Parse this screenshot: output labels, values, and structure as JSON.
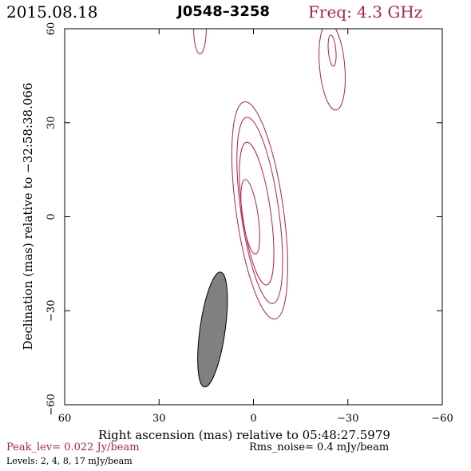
{
  "header": {
    "date": "2015.08.18",
    "source": "J0548–3258",
    "freq": "Freq: 4.3 GHz"
  },
  "footer": {
    "peak": "Peak_lev=  0.022 Jy/beam",
    "rms": "Rms_noise=   0.4 mJy/beam",
    "levels": "Levels:   2,    4,    8,   17 mJy/beam"
  },
  "colors": {
    "contour": "#b0204a",
    "beam_fill": "#808080",
    "axis": "#000000"
  },
  "chart_data": {
    "type": "contour",
    "xlabel": "Right ascension (mas) relative to 05:48:27.5979",
    "ylabel": "Declination (mas) relative to −32:58:38.066",
    "xlim": [
      60,
      -60
    ],
    "ylim": [
      -60,
      60
    ],
    "x_ticks": [
      60,
      30,
      0,
      -30,
      -60
    ],
    "y_ticks": [
      -60,
      -30,
      0,
      30,
      60
    ],
    "x_tick_labels": [
      "60",
      "30",
      "0",
      "−30",
      "−60"
    ],
    "y_tick_labels": [
      "−60",
      "−30",
      "0",
      "30",
      "60"
    ],
    "levels_mjy": [
      2,
      4,
      8,
      17
    ],
    "peak_jy_per_beam": 0.022,
    "rms_noise_mjy_per_beam": 0.4,
    "contours": [
      {
        "component": "core",
        "level_mjy": 2,
        "center": [
          -2,
          2
        ],
        "semi_major": 35,
        "semi_minor": 7.5,
        "pa_deg": -8
      },
      {
        "component": "core",
        "level_mjy": 4,
        "center": [
          -2,
          2
        ],
        "semi_major": 30,
        "semi_minor": 6,
        "pa_deg": -8
      },
      {
        "component": "core",
        "level_mjy": 8,
        "center": [
          -1,
          1
        ],
        "semi_major": 23,
        "semi_minor": 4.5,
        "pa_deg": -8
      },
      {
        "component": "core",
        "level_mjy": 17,
        "center": [
          1,
          0
        ],
        "semi_major": 12,
        "semi_minor": 2.5,
        "pa_deg": -8
      },
      {
        "component": "ne-blob",
        "level_mjy": 2,
        "center": [
          -25,
          48
        ],
        "semi_major": 14,
        "semi_minor": 4,
        "pa_deg": -5
      },
      {
        "component": "ne-blob",
        "level_mjy": 4,
        "center": [
          -25,
          53
        ],
        "semi_major": 5,
        "semi_minor": 1.2,
        "pa_deg": -5
      },
      {
        "component": "nw-blob",
        "level_mjy": 2,
        "center": [
          17,
          60
        ],
        "semi_major": 8,
        "semi_minor": 2,
        "pa_deg": 0
      }
    ],
    "beam": {
      "center": [
        13,
        -36
      ],
      "semi_major": 18.5,
      "semi_minor": 4,
      "pa_deg": 8
    }
  }
}
